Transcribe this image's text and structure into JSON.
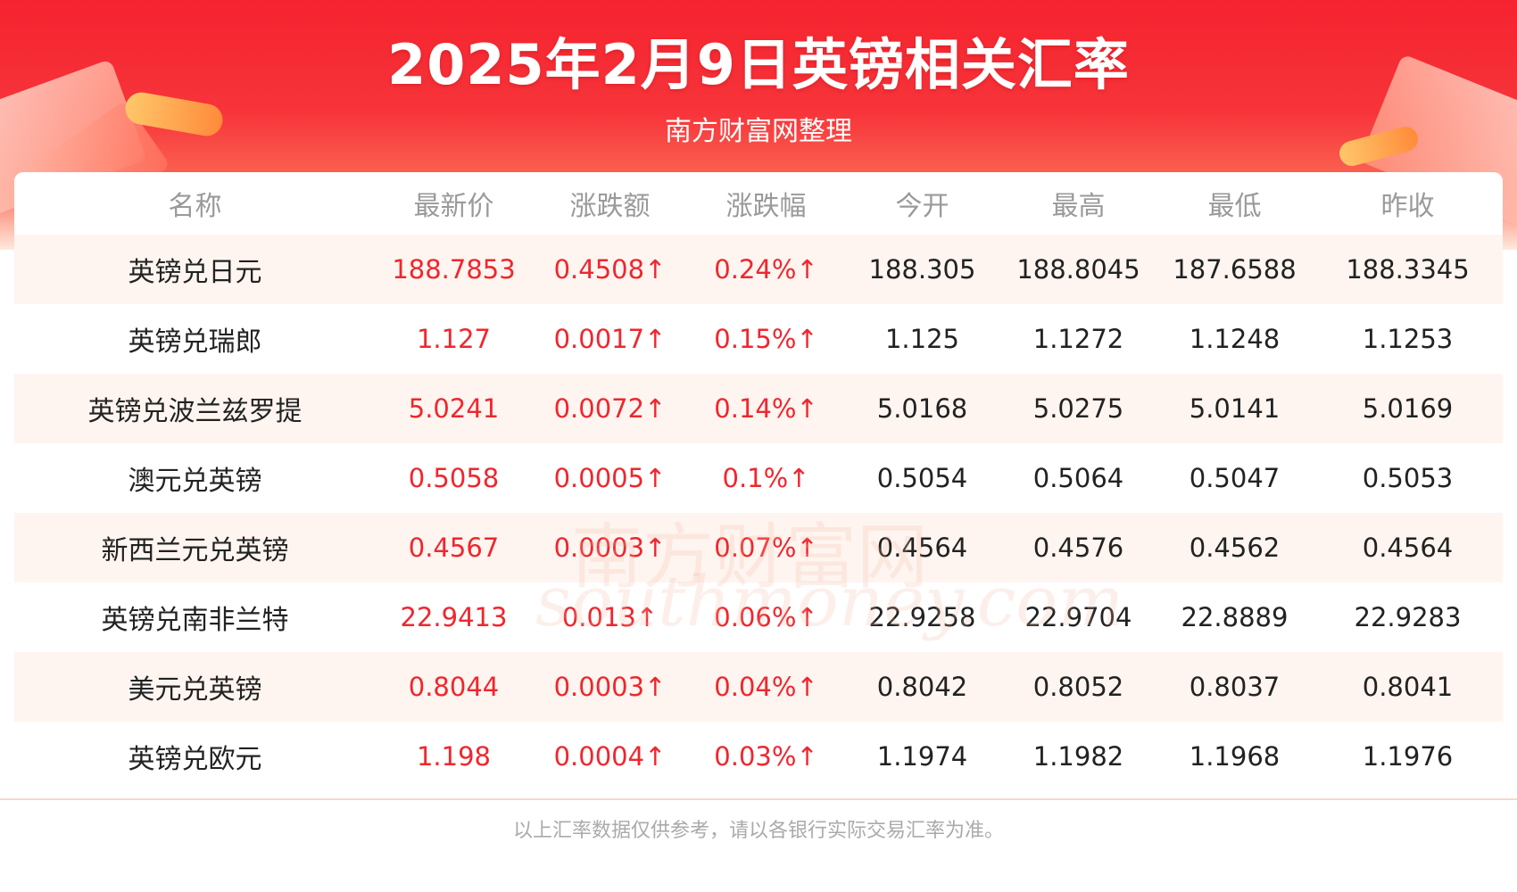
{
  "header": {
    "title": "2025年2月9日英镑相关汇率",
    "subtitle": "南方财富网整理"
  },
  "watermark": {
    "cn": "南方财富网",
    "en": "southmoney.com"
  },
  "table": {
    "columns": [
      "名称",
      "最新价",
      "涨跌额",
      "涨跌幅",
      "今开",
      "最高",
      "最低",
      "昨收"
    ],
    "rows": [
      {
        "name": "英镑兑日元",
        "latest": "188.7853",
        "change": "0.4508↑",
        "change_pct": "0.24%↑",
        "open": "188.305",
        "high": "188.8045",
        "low": "187.6588",
        "prev_close": "188.3345"
      },
      {
        "name": "英镑兑瑞郎",
        "latest": "1.127",
        "change": "0.0017↑",
        "change_pct": "0.15%↑",
        "open": "1.125",
        "high": "1.1272",
        "low": "1.1248",
        "prev_close": "1.1253"
      },
      {
        "name": "英镑兑波兰兹罗提",
        "latest": "5.0241",
        "change": "0.0072↑",
        "change_pct": "0.14%↑",
        "open": "5.0168",
        "high": "5.0275",
        "low": "5.0141",
        "prev_close": "5.0169"
      },
      {
        "name": "澳元兑英镑",
        "latest": "0.5058",
        "change": "0.0005↑",
        "change_pct": "0.1%↑",
        "open": "0.5054",
        "high": "0.5064",
        "low": "0.5047",
        "prev_close": "0.5053"
      },
      {
        "name": "新西兰元兑英镑",
        "latest": "0.4567",
        "change": "0.0003↑",
        "change_pct": "0.07%↑",
        "open": "0.4564",
        "high": "0.4576",
        "low": "0.4562",
        "prev_close": "0.4564"
      },
      {
        "name": "英镑兑南非兰特",
        "latest": "22.9413",
        "change": "0.013↑",
        "change_pct": "0.06%↑",
        "open": "22.9258",
        "high": "22.9704",
        "low": "22.8889",
        "prev_close": "22.9283"
      },
      {
        "name": "美元兑英镑",
        "latest": "0.8044",
        "change": "0.0003↑",
        "change_pct": "0.04%↑",
        "open": "0.8042",
        "high": "0.8052",
        "low": "0.8037",
        "prev_close": "0.8041"
      },
      {
        "name": "英镑兑欧元",
        "latest": "1.198",
        "change": "0.0004↑",
        "change_pct": "0.03%↑",
        "open": "1.1974",
        "high": "1.1982",
        "low": "1.1968",
        "prev_close": "1.1976"
      }
    ]
  },
  "footer": {
    "note": "以上汇率数据仅供参考，请以各银行实际交易汇率为准。"
  },
  "colors": {
    "banner_red": "#f5232f",
    "up_red": "#f0262e",
    "header_gray": "#9a9a9a",
    "stripe": "#fff5f0"
  }
}
